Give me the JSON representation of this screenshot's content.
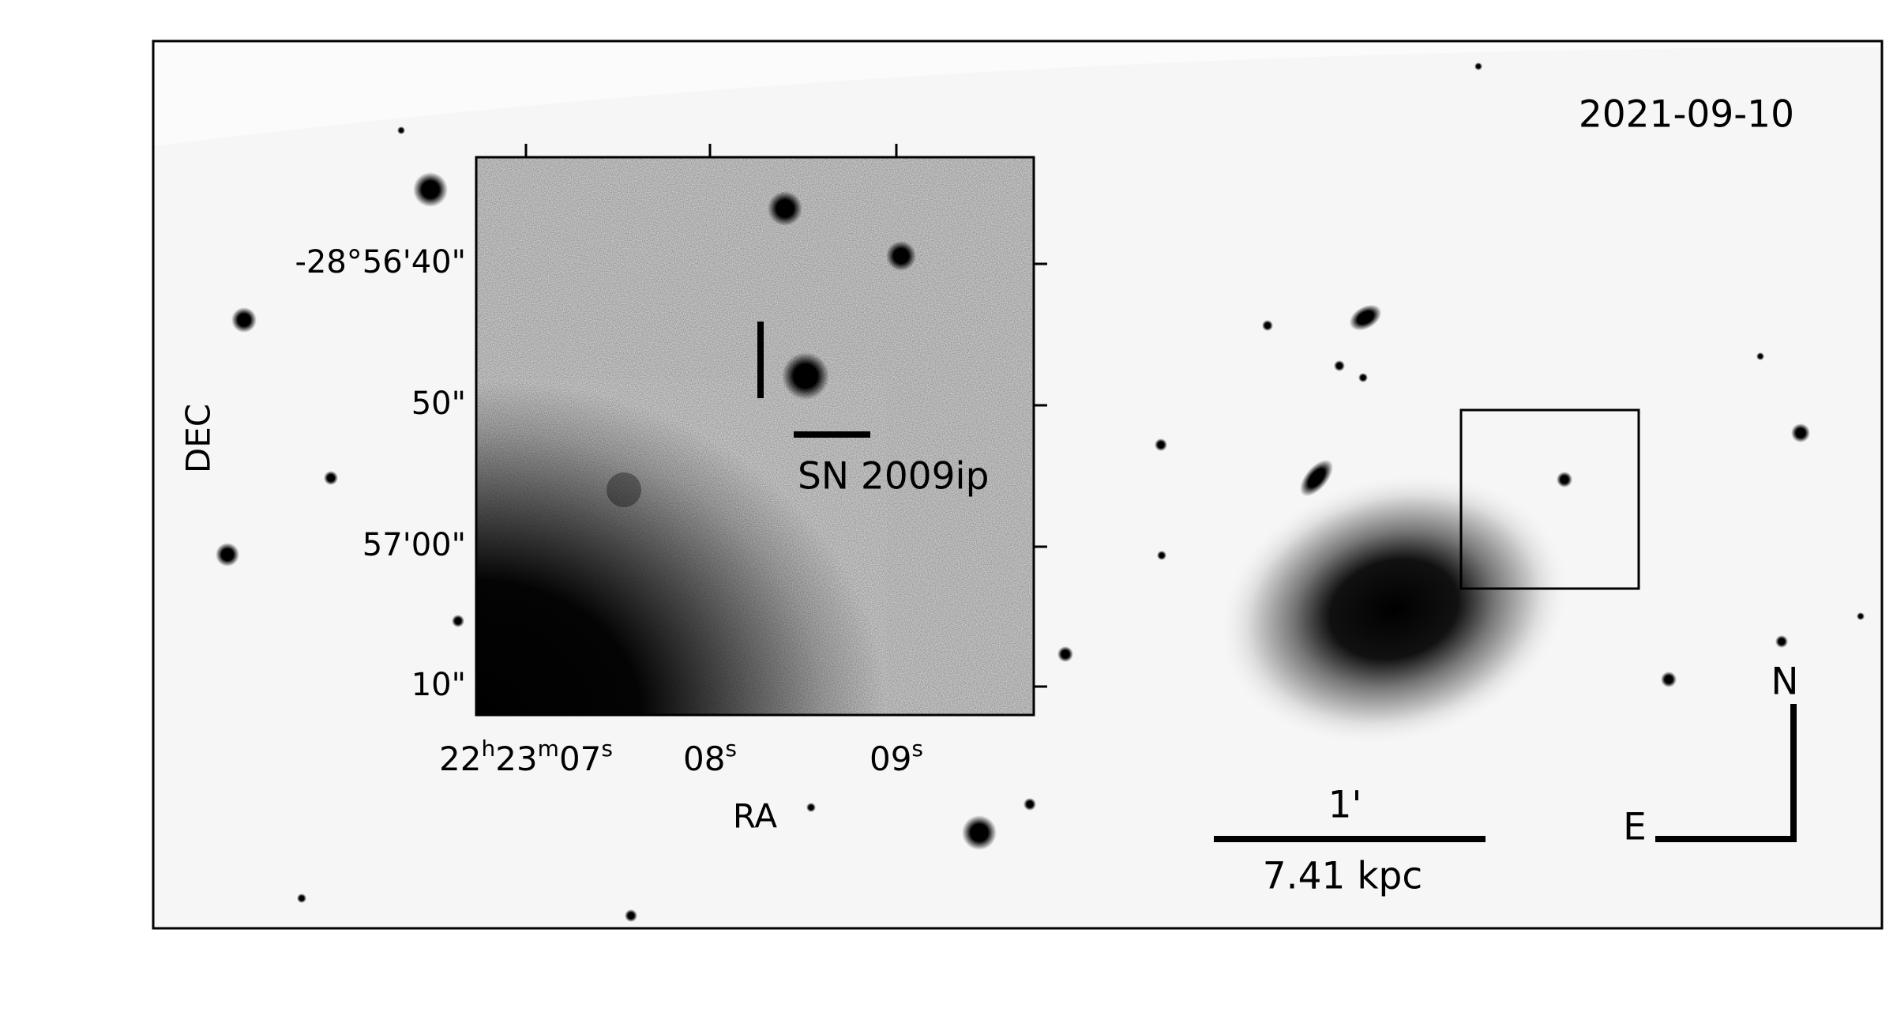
{
  "main_image": {
    "date": "2021-09-10",
    "scale_bar": {
      "angle": "1'",
      "distance": "7.41 kpc"
    },
    "compass": {
      "north": "N",
      "east": "E"
    }
  },
  "inset": {
    "ylabel": "DEC",
    "xlabel": "RA",
    "yticks": [
      "-28°56'40\"",
      "50\"",
      "57'00\"",
      "10\""
    ],
    "xticks": [
      [
        "22",
        "h",
        "23",
        "m",
        "07",
        "s"
      ],
      [
        "08",
        "s"
      ],
      [
        "09",
        "s"
      ]
    ],
    "annotation": "SN 2009ip"
  }
}
